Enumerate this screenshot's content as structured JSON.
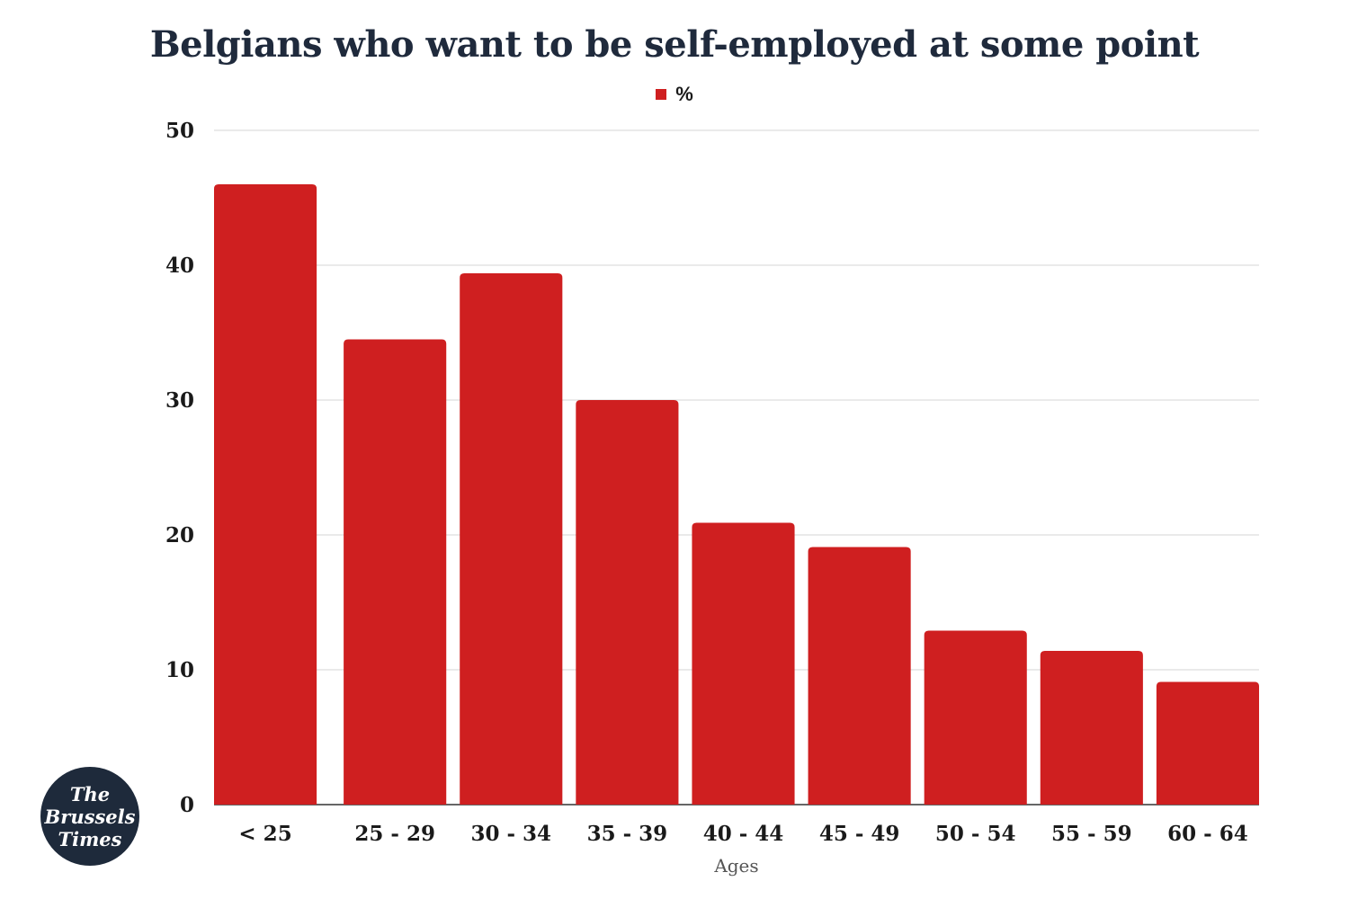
{
  "chart_data": {
    "type": "bar",
    "title": "Belgians who want to be self-employed at some point",
    "categories": [
      "< 25",
      "25 - 29",
      "30 - 34",
      "35 - 39",
      "40 - 44",
      "45 - 49",
      "50 - 54",
      "55 - 59",
      "60 - 64"
    ],
    "series": [
      {
        "name": "%",
        "values": [
          46,
          34.5,
          39.4,
          30,
          20.9,
          19.1,
          12.9,
          11.4,
          9.1
        ]
      }
    ],
    "xlabel": "Ages",
    "ylabel": "",
    "ylim": [
      0,
      50
    ],
    "yticks": [
      "0",
      "10",
      "20",
      "30",
      "40",
      "50"
    ],
    "grid": true,
    "legend_position": "top-center",
    "bar_color": "#cf1f20"
  },
  "logo": {
    "lines": [
      "The",
      "Brussels",
      "Times"
    ]
  }
}
